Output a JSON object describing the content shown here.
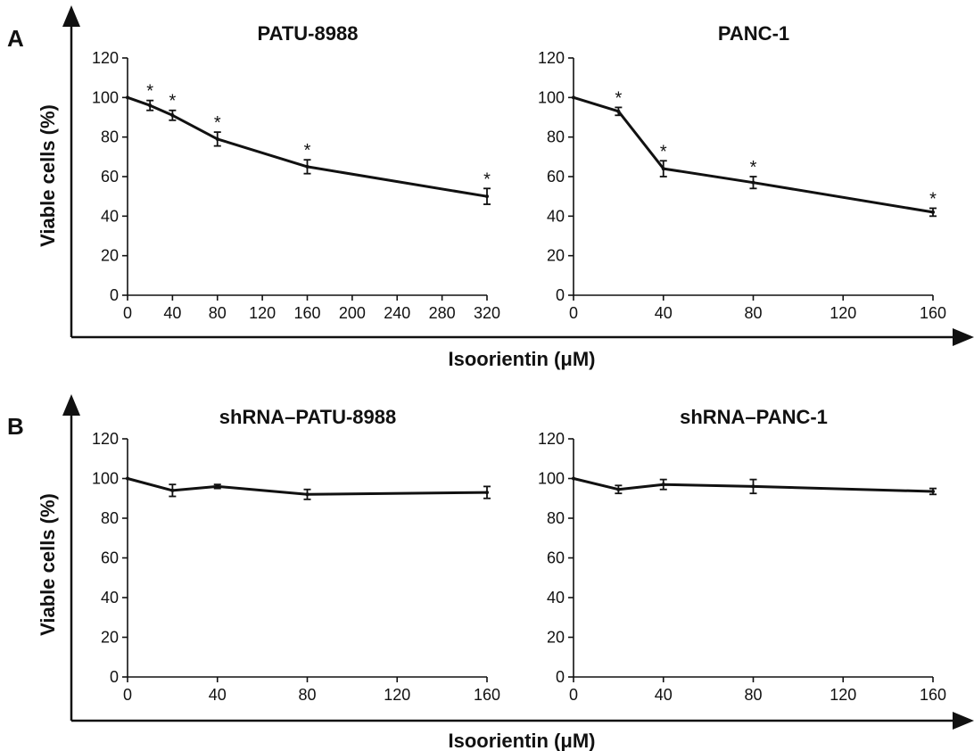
{
  "panels": [
    {
      "label": "A",
      "ylabel": "Viable cells (%)",
      "xlabel": "Isoorientin (μM)"
    },
    {
      "label": "B",
      "ylabel": "Viable cells (%)",
      "xlabel": "Isoorientin (μM)"
    }
  ],
  "chart_data": [
    {
      "type": "line",
      "panel": "A",
      "title": "PATU-8988",
      "x": [
        0,
        20,
        40,
        80,
        160,
        320
      ],
      "series": [
        {
          "values": [
            100,
            96,
            91,
            79,
            65,
            50
          ],
          "error": [
            0,
            2.5,
            2.5,
            3.5,
            3.5,
            4
          ]
        }
      ],
      "significant": [
        false,
        true,
        true,
        true,
        true,
        true
      ],
      "significance_marker": "*",
      "xticks": [
        0,
        40,
        80,
        120,
        160,
        200,
        240,
        280,
        320
      ],
      "yticks": [
        0,
        20,
        40,
        60,
        80,
        100,
        120
      ],
      "xlim": [
        0,
        320
      ],
      "ylim": [
        0,
        120
      ],
      "grid": false
    },
    {
      "type": "line",
      "panel": "A",
      "title": "PANC-1",
      "x": [
        0,
        20,
        40,
        80,
        160
      ],
      "series": [
        {
          "values": [
            100,
            93,
            64,
            57,
            42
          ],
          "error": [
            0,
            2,
            4,
            3,
            2
          ]
        }
      ],
      "significant": [
        false,
        true,
        true,
        true,
        true
      ],
      "significance_marker": "*",
      "xticks": [
        0,
        40,
        80,
        120,
        160
      ],
      "yticks": [
        0,
        20,
        40,
        60,
        80,
        100,
        120
      ],
      "xlim": [
        0,
        160
      ],
      "ylim": [
        0,
        120
      ],
      "grid": false
    },
    {
      "type": "line",
      "panel": "B",
      "title": "shRNA–PATU-8988",
      "x": [
        0,
        20,
        40,
        80,
        160
      ],
      "series": [
        {
          "values": [
            100,
            94,
            96,
            92,
            93
          ],
          "error": [
            0,
            3,
            1,
            2.5,
            3
          ]
        }
      ],
      "significant": [
        false,
        false,
        false,
        false,
        false
      ],
      "significance_marker": "*",
      "xticks": [
        0,
        40,
        80,
        120,
        160
      ],
      "yticks": [
        0,
        20,
        40,
        60,
        80,
        100,
        120
      ],
      "xlim": [
        0,
        160
      ],
      "ylim": [
        0,
        120
      ],
      "grid": false
    },
    {
      "type": "line",
      "panel": "B",
      "title": "shRNA–PANC-1",
      "x": [
        0,
        20,
        40,
        80,
        160
      ],
      "series": [
        {
          "values": [
            100,
            94.5,
            97,
            96,
            93.5
          ],
          "error": [
            0,
            2,
            2.5,
            3.5,
            1.5
          ]
        }
      ],
      "significant": [
        false,
        false,
        false,
        false,
        false
      ],
      "significance_marker": "*",
      "xticks": [
        0,
        40,
        80,
        120,
        160
      ],
      "yticks": [
        0,
        20,
        40,
        60,
        80,
        100,
        120
      ],
      "xlim": [
        0,
        160
      ],
      "ylim": [
        0,
        120
      ],
      "grid": false
    }
  ]
}
